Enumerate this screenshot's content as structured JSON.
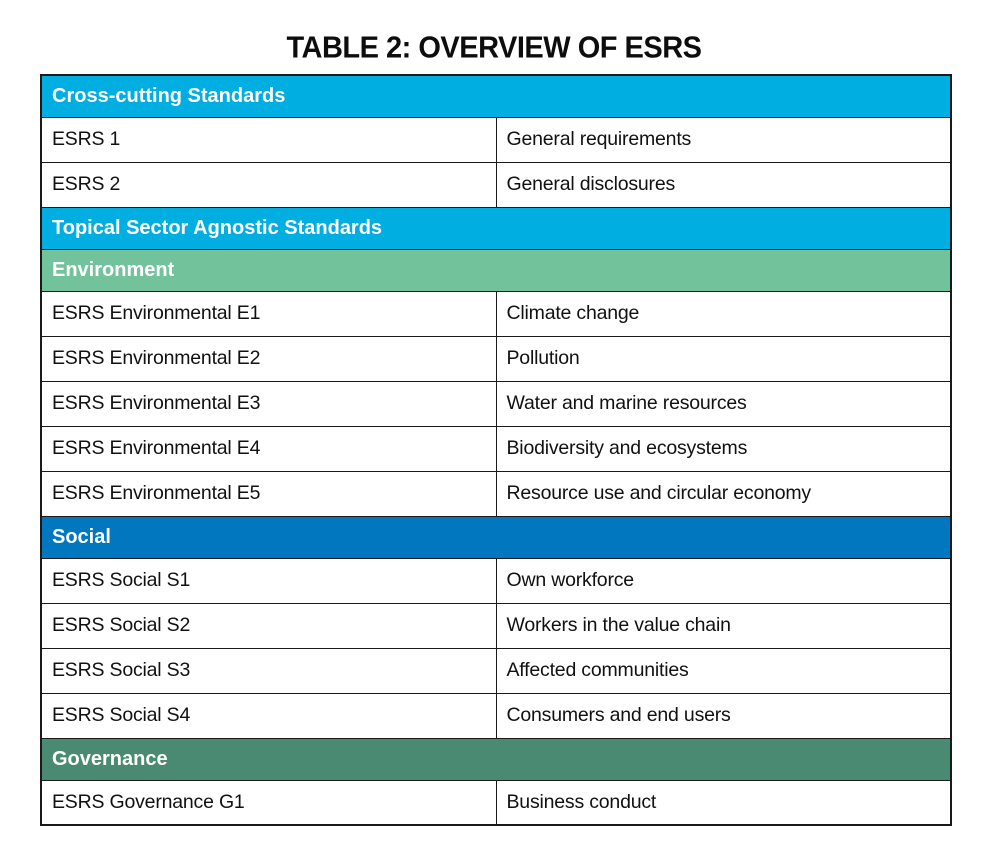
{
  "title": "TABLE 2: OVERVIEW OF ESRS",
  "colors": {
    "cross_cutting_band": "#00AEE1",
    "topical_band": "#00AEE1",
    "environment_band": "#72C39B",
    "social_band": "#0077BE",
    "governance_band": "#4A8A72",
    "border": "#1a1a1a",
    "band_text": "#ffffff",
    "cell_text": "#111111",
    "background": "#ffffff"
  },
  "table": {
    "sections": [
      {
        "header": "Cross-cutting Standards",
        "rows": [
          [
            "ESRS 1",
            "General requirements"
          ],
          [
            "ESRS 2",
            "General disclosures"
          ]
        ]
      },
      {
        "header": "Topical Sector Agnostic Standards",
        "rows": []
      },
      {
        "header": "Environment",
        "rows": [
          [
            "ESRS Environmental E1",
            "Climate change"
          ],
          [
            "ESRS Environmental E2",
            "Pollution"
          ],
          [
            "ESRS Environmental E3",
            "Water and marine resources"
          ],
          [
            "ESRS Environmental E4",
            "Biodiversity and ecosystems"
          ],
          [
            "ESRS Environmental E5",
            "Resource use and circular economy"
          ]
        ]
      },
      {
        "header": "Social",
        "rows": [
          [
            "ESRS Social S1",
            "Own workforce"
          ],
          [
            "ESRS Social S2",
            "Workers in the value chain"
          ],
          [
            "ESRS Social S3",
            "Affected communities"
          ],
          [
            "ESRS Social S4",
            "Consumers and end users"
          ]
        ]
      },
      {
        "header": "Governance",
        "rows": [
          [
            "ESRS Governance G1",
            "Business conduct"
          ]
        ]
      }
    ]
  }
}
